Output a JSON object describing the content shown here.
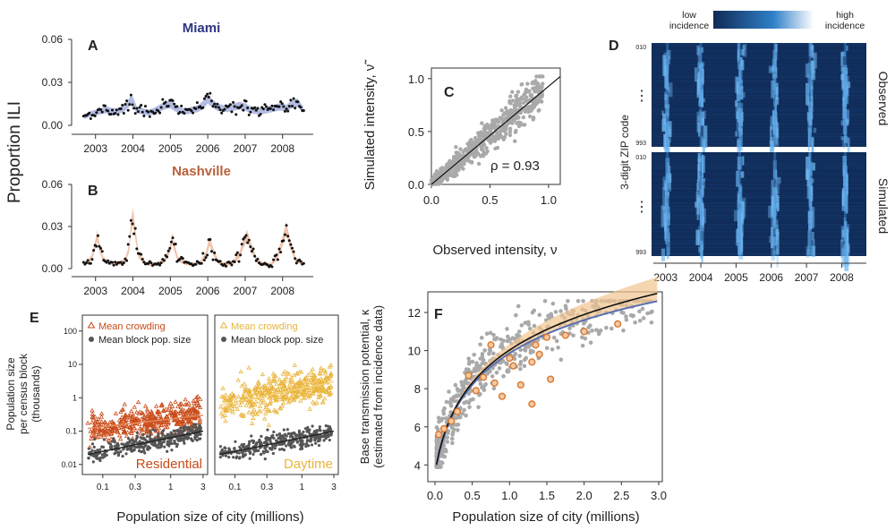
{
  "colors": {
    "miami_title": "#2e3580",
    "nashville_title": "#b9603a",
    "miami_band": "#9aa6d8",
    "nashville_band": "#eab08f",
    "scatter_gray": "#a9a9a9",
    "residential_red": "#c94a18",
    "daytime_yellow": "#e9b43a",
    "dark_dots": "#555555",
    "orange_circle": "#d9772e",
    "heat_dark": "#0f2a55",
    "heat_light": "#6fb6f0"
  },
  "figure": {
    "shared_ylabel_AB": "Proportion ILI"
  },
  "chart_data": [
    {
      "id": "A",
      "type": "line",
      "panel_label": "A",
      "title": "Miami",
      "x_ticks": [
        "2003",
        "2004",
        "2005",
        "2006",
        "2007",
        "2008"
      ],
      "y_ticks": [
        "0.00",
        "0.03",
        "0.06"
      ],
      "xlim": [
        2002.6,
        2008.7
      ],
      "ylim": [
        0,
        0.06
      ],
      "series": [
        {
          "x": [
            2002.7,
            2002.85,
            2003.0,
            2003.15,
            2003.3,
            2003.45,
            2003.6,
            2003.75,
            2003.9,
            2003.95,
            2004.0,
            2004.1,
            2004.25,
            2004.4,
            2004.55,
            2004.7,
            2004.85,
            2005.0,
            2005.15,
            2005.3,
            2005.45,
            2005.6,
            2005.75,
            2005.9,
            2006.0,
            2006.1,
            2006.25,
            2006.4,
            2006.55,
            2006.7,
            2006.85,
            2007.0,
            2007.15,
            2007.3,
            2007.45,
            2007.6,
            2007.75,
            2007.9,
            2008.0,
            2008.1,
            2008.25,
            2008.4,
            2008.55
          ],
          "y": [
            0.006,
            0.008,
            0.009,
            0.01,
            0.011,
            0.01,
            0.01,
            0.012,
            0.016,
            0.019,
            0.017,
            0.011,
            0.01,
            0.009,
            0.01,
            0.012,
            0.014,
            0.015,
            0.012,
            0.01,
            0.01,
            0.011,
            0.012,
            0.015,
            0.019,
            0.016,
            0.013,
            0.012,
            0.012,
            0.013,
            0.014,
            0.013,
            0.011,
            0.01,
            0.01,
            0.011,
            0.012,
            0.013,
            0.013,
            0.012,
            0.015,
            0.016,
            0.011
          ]
        }
      ]
    },
    {
      "id": "B",
      "type": "line",
      "panel_label": "B",
      "title": "Nashville",
      "x_ticks": [
        "2003",
        "2004",
        "2005",
        "2006",
        "2007",
        "2008"
      ],
      "y_ticks": [
        "0.00",
        "0.03",
        "0.06"
      ],
      "xlim": [
        2002.6,
        2008.7
      ],
      "ylim": [
        0,
        0.06
      ],
      "series": [
        {
          "x": [
            2002.7,
            2002.8,
            2002.9,
            2003.0,
            2003.05,
            2003.1,
            2003.2,
            2003.35,
            2003.5,
            2003.65,
            2003.8,
            2003.9,
            2003.95,
            2004.0,
            2004.05,
            2004.15,
            2004.3,
            2004.5,
            2004.7,
            2004.85,
            2005.0,
            2005.05,
            2005.1,
            2005.2,
            2005.4,
            2005.6,
            2005.8,
            2005.95,
            2006.05,
            2006.15,
            2006.3,
            2006.5,
            2006.7,
            2006.85,
            2006.95,
            2007.05,
            2007.15,
            2007.3,
            2007.5,
            2007.7,
            2007.85,
            2008.0,
            2008.1,
            2008.2,
            2008.35,
            2008.55
          ],
          "y": [
            0.004,
            0.005,
            0.008,
            0.018,
            0.024,
            0.016,
            0.007,
            0.004,
            0.004,
            0.004,
            0.006,
            0.015,
            0.03,
            0.038,
            0.028,
            0.01,
            0.004,
            0.003,
            0.004,
            0.006,
            0.015,
            0.022,
            0.016,
            0.007,
            0.004,
            0.003,
            0.004,
            0.01,
            0.02,
            0.012,
            0.004,
            0.003,
            0.005,
            0.01,
            0.018,
            0.024,
            0.016,
            0.006,
            0.003,
            0.003,
            0.008,
            0.02,
            0.029,
            0.018,
            0.006,
            0.004
          ]
        }
      ]
    },
    {
      "id": "C",
      "type": "scatter",
      "panel_label": "C",
      "xlabel": "Observed intensity, ν",
      "ylabel": "Simulated intensity, ν̃",
      "x_ticks": [
        "0.0",
        "0.5",
        "1.0"
      ],
      "y_ticks": [
        "0.0",
        "0.5",
        "1.0"
      ],
      "xlim": [
        0,
        1.1
      ],
      "ylim": [
        0,
        1.1
      ],
      "annotation": "ρ = 0.93",
      "fit_line": [
        [
          0,
          0
        ],
        [
          1.1,
          1.02
        ]
      ]
    },
    {
      "id": "D",
      "type": "heatmap",
      "panel_label": "D",
      "colorbar_low": "low incidence",
      "colorbar_high": "high incidence",
      "ylabel": "3-digit ZIP code",
      "row_top_label": "010",
      "row_bottom_label": "993",
      "ellipsis": "⋮",
      "top_panel_label": "Observed",
      "bottom_panel_label": "Simulated",
      "x_ticks": [
        "2003",
        "2004",
        "2005",
        "2006",
        "2007",
        "2008"
      ],
      "xlim": [
        2002.6,
        2008.7
      ],
      "peak_years": [
        2003.05,
        2004.0,
        2005.1,
        2006.1,
        2007.1,
        2008.1
      ]
    },
    {
      "id": "E",
      "type": "scatter",
      "panel_label": "E",
      "ylabel": [
        "Population size",
        "per census block",
        "(thousands)"
      ],
      "xlabel": "Population size of city (millions)",
      "x_ticks": [
        "0.1",
        "0.3",
        "1",
        "3"
      ],
      "y_ticks": [
        "100",
        "10",
        "1",
        "0.1",
        "0.01"
      ],
      "log_x": true,
      "log_y": true,
      "xlim": [
        0.05,
        3.5
      ],
      "ylim": [
        0.005,
        300
      ],
      "panels": [
        {
          "name": "Residential",
          "legend": [
            "Mean crowding",
            "Mean block pop. size"
          ],
          "crowding_trend": [
            [
              0.06,
              0.12
            ],
            [
              3,
              0.3
            ]
          ],
          "block_trend": [
            [
              0.06,
              0.02
            ],
            [
              3,
              0.1
            ]
          ]
        },
        {
          "name": "Daytime",
          "legend": [
            "Mean crowding",
            "Mean block pop. size"
          ],
          "crowding_trend": [
            [
              0.06,
              0.6
            ],
            [
              3,
              3
            ]
          ],
          "block_trend": [
            [
              0.06,
              0.02
            ],
            [
              3,
              0.1
            ]
          ]
        }
      ]
    },
    {
      "id": "F",
      "type": "scatter",
      "panel_label": "F",
      "xlabel": "Population size of city (millions)",
      "ylabel": [
        "Base transmission potential, κ",
        "(estimated from incidence data)"
      ],
      "x_ticks": [
        "0.0",
        "0.5",
        "1.0",
        "1.5",
        "2.0",
        "2.5",
        "3.0"
      ],
      "y_ticks": [
        "4",
        "6",
        "8",
        "10",
        "12"
      ],
      "xlim": [
        0,
        3.0
      ],
      "ylim": [
        3.5,
        12.8
      ],
      "highlight_points": [
        {
          "x": 0.05,
          "y": 5.6
        },
        {
          "x": 0.12,
          "y": 5.9
        },
        {
          "x": 0.22,
          "y": 6.3
        },
        {
          "x": 0.3,
          "y": 6.8
        },
        {
          "x": 0.45,
          "y": 8.7
        },
        {
          "x": 0.55,
          "y": 7.9
        },
        {
          "x": 0.65,
          "y": 8.6
        },
        {
          "x": 0.75,
          "y": 10.3
        },
        {
          "x": 0.8,
          "y": 8.3
        },
        {
          "x": 0.9,
          "y": 7.6
        },
        {
          "x": 1.0,
          "y": 9.6
        },
        {
          "x": 1.05,
          "y": 9.2
        },
        {
          "x": 1.15,
          "y": 8.2
        },
        {
          "x": 1.3,
          "y": 9.4
        },
        {
          "x": 1.35,
          "y": 10.3
        },
        {
          "x": 1.4,
          "y": 9.8
        },
        {
          "x": 1.5,
          "y": 10.7
        },
        {
          "x": 1.55,
          "y": 8.5
        },
        {
          "x": 1.75,
          "y": 10.8
        },
        {
          "x": 2.0,
          "y": 11.0
        },
        {
          "x": 2.45,
          "y": 11.4
        },
        {
          "x": 1.3,
          "y": 7.2
        }
      ]
    }
  ]
}
